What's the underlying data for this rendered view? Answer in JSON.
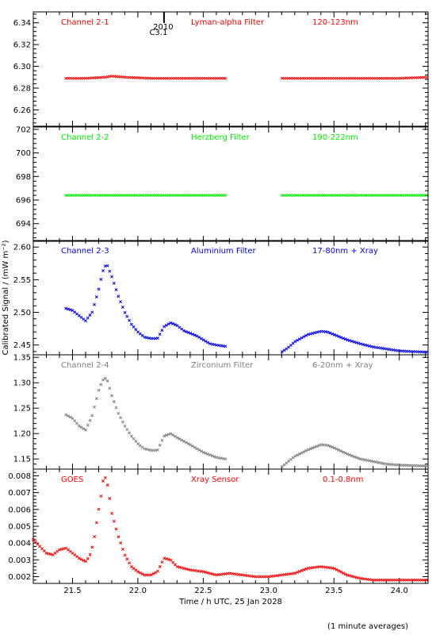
{
  "xlabel": "Time / h UTC, 25 Jan 2028",
  "ylabel": "Calibrated Signal / (mW m⁻²)",
  "footer": "(1 minute averages)",
  "event_marker": {
    "time": 22.2,
    "label_top": "2010",
    "label_bottom": "C3.1"
  },
  "x_ticks": [
    "21.5",
    "22.0",
    "22.5",
    "23.0",
    "23.5",
    "24.0"
  ],
  "chart_data": [
    {
      "type": "scatter",
      "channel": "Channel 2-1",
      "filter": "Lyman-alpha Filter",
      "band": "120-123nm",
      "color": "#ff0000",
      "xlim": [
        21.2,
        24.22
      ],
      "ylim": [
        6.245,
        6.35
      ],
      "yticks": [
        6.26,
        6.28,
        6.3,
        6.32,
        6.34
      ],
      "ytick_labels": [
        "6.26",
        "6.28",
        "6.30",
        "6.32",
        "6.34"
      ],
      "gap": [
        22.67,
        23.09
      ],
      "series": [
        {
          "x": [
            21.45,
            21.6,
            21.75,
            21.8,
            21.9,
            22.1,
            22.3,
            22.67,
            23.09,
            23.5,
            24.0,
            24.22
          ],
          "y": [
            6.289,
            6.289,
            6.29,
            6.291,
            6.29,
            6.289,
            6.289,
            6.289,
            6.289,
            6.289,
            6.289,
            6.29
          ]
        }
      ]
    },
    {
      "type": "scatter",
      "channel": "Channel 2-2",
      "filter": "Herzberg Filter",
      "band": "190-222nm",
      "color": "#00ee00",
      "xlim": [
        21.2,
        24.22
      ],
      "ylim": [
        692.5,
        702.2
      ],
      "yticks": [
        694,
        696,
        698,
        700,
        702
      ],
      "ytick_labels": [
        "694",
        "696",
        "698",
        "700",
        "702"
      ],
      "gap": [
        22.67,
        23.09
      ],
      "series": [
        {
          "x": [
            21.45,
            21.8,
            22.2,
            22.67,
            23.09,
            23.5,
            24.0,
            24.22
          ],
          "y": [
            696.4,
            696.4,
            696.4,
            696.4,
            696.4,
            696.4,
            696.4,
            696.4
          ]
        }
      ]
    },
    {
      "type": "scatter",
      "channel": "Channel 2-3",
      "filter": "Aluminium Filter",
      "band": "17-80nm + Xray",
      "color": "#0000ee",
      "xlim": [
        21.2,
        24.22
      ],
      "ylim": [
        2.435,
        2.61
      ],
      "yticks": [
        2.45,
        2.5,
        2.55,
        2.6
      ],
      "ytick_labels": [
        "2.45",
        "2.50",
        "2.55",
        "2.60"
      ],
      "gap": [
        22.67,
        23.09
      ],
      "series": [
        {
          "x": [
            21.45,
            21.5,
            21.55,
            21.6,
            21.65,
            21.7,
            21.73,
            21.76,
            21.8,
            21.85,
            21.9,
            21.95,
            22.0,
            22.05,
            22.1,
            22.15,
            22.2,
            22.25,
            22.3,
            22.35,
            22.4,
            22.45,
            22.5,
            22.55,
            22.6,
            22.67,
            23.09,
            23.15,
            23.2,
            23.3,
            23.4,
            23.45,
            23.5,
            23.6,
            23.7,
            23.8,
            23.9,
            24.0,
            24.1,
            24.22
          ],
          "y": [
            2.506,
            2.503,
            2.495,
            2.487,
            2.5,
            2.535,
            2.562,
            2.575,
            2.555,
            2.525,
            2.5,
            2.482,
            2.47,
            2.462,
            2.46,
            2.46,
            2.478,
            2.484,
            2.48,
            2.472,
            2.468,
            2.464,
            2.458,
            2.452,
            2.45,
            2.448,
            2.438,
            2.446,
            2.455,
            2.466,
            2.471,
            2.47,
            2.466,
            2.458,
            2.452,
            2.447,
            2.444,
            2.441,
            2.44,
            2.439
          ]
        }
      ]
    },
    {
      "type": "scatter",
      "channel": "Channel 2-4",
      "filter": "Zirconium Filter",
      "band": "6-20nm + Xray",
      "color": "#7f7f7f",
      "xlim": [
        21.2,
        24.22
      ],
      "ylim": [
        1.13,
        1.355
      ],
      "yticks": [
        1.15,
        1.2,
        1.25,
        1.3,
        1.35
      ],
      "ytick_labels": [
        "1.15",
        "1.20",
        "1.25",
        "1.30",
        "1.35"
      ],
      "gap": [
        22.67,
        23.09
      ],
      "series": [
        {
          "x": [
            21.45,
            21.5,
            21.55,
            21.6,
            21.65,
            21.7,
            21.73,
            21.76,
            21.8,
            21.85,
            21.9,
            21.95,
            22.0,
            22.05,
            22.1,
            22.15,
            22.2,
            22.25,
            22.3,
            22.4,
            22.5,
            22.6,
            22.67,
            23.09,
            23.15,
            23.2,
            23.3,
            23.4,
            23.45,
            23.5,
            23.6,
            23.7,
            23.8,
            23.9,
            24.0,
            24.1,
            24.22
          ],
          "y": [
            1.237,
            1.23,
            1.215,
            1.207,
            1.235,
            1.285,
            1.305,
            1.31,
            1.275,
            1.24,
            1.215,
            1.195,
            1.18,
            1.17,
            1.167,
            1.167,
            1.195,
            1.2,
            1.192,
            1.178,
            1.163,
            1.153,
            1.15,
            1.132,
            1.145,
            1.155,
            1.168,
            1.178,
            1.177,
            1.172,
            1.16,
            1.15,
            1.145,
            1.14,
            1.138,
            1.137,
            1.136
          ]
        }
      ]
    },
    {
      "type": "scatter",
      "channel": "GOES",
      "filter": "Xray Sensor",
      "band": "0.1-0.8nm",
      "color": "#ff0000",
      "xlim": [
        21.2,
        24.22
      ],
      "ylim": [
        0.0016,
        0.0084
      ],
      "yticks": [
        0.002,
        0.003,
        0.004,
        0.005,
        0.006,
        0.007,
        0.008
      ],
      "ytick_labels": [
        "0.002",
        "0.003",
        "0.004",
        "0.005",
        "0.006",
        "0.007",
        "0.008"
      ],
      "gap": null,
      "series": [
        {
          "x": [
            21.2,
            21.25,
            21.3,
            21.35,
            21.4,
            21.45,
            21.5,
            21.55,
            21.6,
            21.63,
            21.66,
            21.69,
            21.72,
            21.74,
            21.76,
            21.78,
            21.8,
            21.85,
            21.9,
            21.95,
            22.0,
            22.05,
            22.1,
            22.15,
            22.2,
            22.25,
            22.3,
            22.4,
            22.5,
            22.6,
            22.7,
            22.8,
            22.9,
            23.0,
            23.1,
            23.2,
            23.3,
            23.4,
            23.5,
            23.6,
            23.7,
            23.8,
            23.9,
            24.0,
            24.1,
            24.22
          ],
          "y": [
            0.0042,
            0.0038,
            0.0034,
            0.0033,
            0.0036,
            0.0037,
            0.0034,
            0.0031,
            0.0029,
            0.0032,
            0.004,
            0.0055,
            0.0069,
            0.008,
            0.0078,
            0.0069,
            0.0058,
            0.0044,
            0.0033,
            0.0026,
            0.0023,
            0.0021,
            0.0021,
            0.0023,
            0.0031,
            0.003,
            0.0026,
            0.0024,
            0.0023,
            0.0021,
            0.0022,
            0.0021,
            0.002,
            0.002,
            0.0021,
            0.0022,
            0.0025,
            0.0026,
            0.0025,
            0.0021,
            0.0019,
            0.0018,
            0.0018,
            0.0018,
            0.0018,
            0.0018
          ]
        }
      ]
    }
  ]
}
